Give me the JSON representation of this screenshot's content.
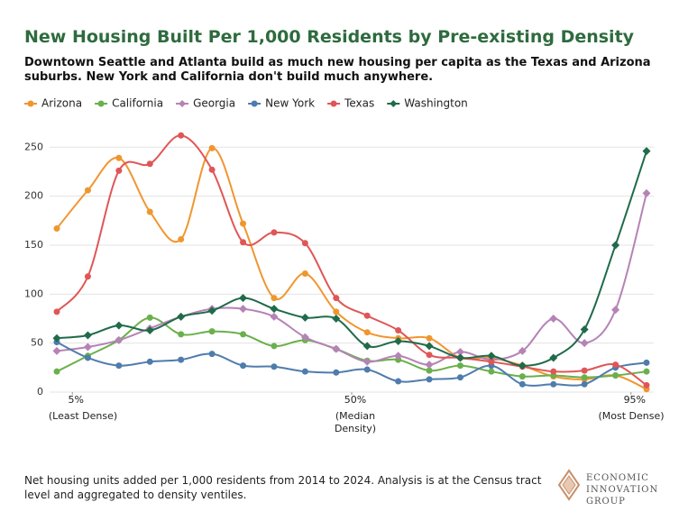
{
  "chart_data": {
    "type": "line",
    "title": "New Housing Built Per 1,000 Residents by Pre-existing Density",
    "subtitle": "Downtown Seattle and Atlanta build as much new housing per capita as the Texas and Arizona suburbs. New York and California don't build much anywhere.",
    "x": [
      2.5,
      7.5,
      12.5,
      17.5,
      22.5,
      27.5,
      32.5,
      37.5,
      42.5,
      47.5,
      52.5,
      57.5,
      62.5,
      67.5,
      72.5,
      77.5,
      82.5,
      87.5,
      92.5,
      97.5
    ],
    "xlim": [
      2.5,
      97.5
    ],
    "xticks": [
      {
        "value": 5,
        "label": "5%"
      },
      {
        "value": 50,
        "label": "50%"
      },
      {
        "value": 95,
        "label": "95%"
      }
    ],
    "x_tick_notes": [
      "(Least Dense)",
      "(Median Density)",
      "(Most Dense)"
    ],
    "ylim": [
      0,
      265
    ],
    "yticks": [
      0,
      50,
      100,
      150,
      200,
      250
    ],
    "grid": true,
    "legend": "top-left",
    "series": [
      {
        "name": "Arizona",
        "color": "#f0962f",
        "marker": "circle",
        "values": [
          167,
          206,
          239,
          184,
          156,
          249,
          172,
          96,
          121,
          82,
          61,
          55,
          55,
          35,
          35,
          27,
          16,
          13,
          17,
          3
        ]
      },
      {
        "name": "California",
        "color": "#6ab04c",
        "marker": "circle",
        "values": [
          21,
          37,
          53,
          76,
          59,
          62,
          59,
          47,
          53,
          44,
          32,
          33,
          22,
          27,
          21,
          16,
          17,
          15,
          17,
          21
        ]
      },
      {
        "name": "Georgia",
        "color": "#b583b5",
        "marker": "diamond",
        "values": [
          42,
          46,
          53,
          65,
          77,
          85,
          85,
          77,
          56,
          44,
          31,
          37,
          28,
          41,
          33,
          42,
          75,
          50,
          84,
          203
        ]
      },
      {
        "name": "New York",
        "color": "#4f7cac",
        "marker": "circle",
        "values": [
          51,
          35,
          27,
          31,
          33,
          39,
          27,
          26,
          21,
          20,
          23,
          11,
          13,
          15,
          27,
          8,
          8,
          8,
          25,
          30
        ]
      },
      {
        "name": "Texas",
        "color": "#e05656",
        "marker": "circle",
        "values": [
          82,
          118,
          226,
          233,
          262,
          227,
          153,
          163,
          152,
          96,
          78,
          63,
          38,
          35,
          31,
          26,
          21,
          22,
          28,
          7
        ]
      },
      {
        "name": "Washington",
        "color": "#1f6b4a",
        "marker": "diamond",
        "values": [
          55,
          58,
          68,
          63,
          77,
          83,
          96,
          85,
          76,
          75,
          47,
          52,
          47,
          35,
          37,
          27,
          35,
          64,
          150,
          246
        ]
      }
    ]
  },
  "footnote": "Net housing units added per 1,000 residents from 2014 to 2024. Analysis is at the Census tract level and aggregated to density ventiles.",
  "logo": {
    "line1": "ECONOMIC",
    "line2": "INNOVATION",
    "line3": "GROUP"
  }
}
